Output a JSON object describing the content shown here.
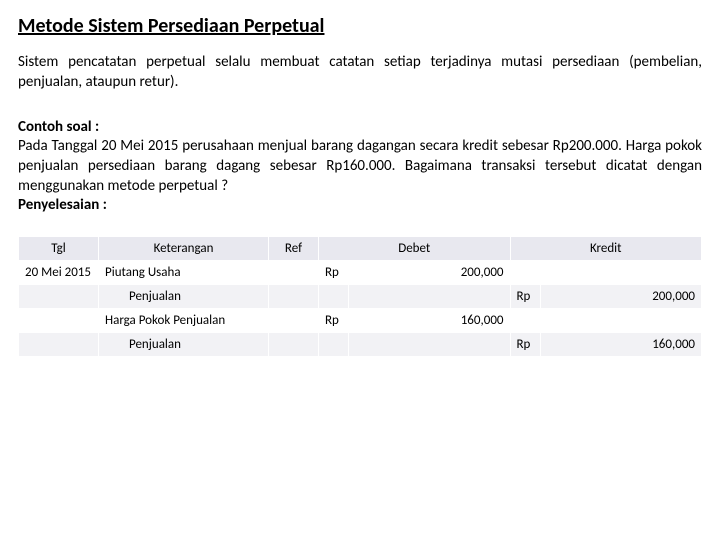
{
  "title": "Metode Sistem Persediaan Perpetual",
  "intro": "Sistem pencatatan perpetual selalu membuat catatan setiap terjadinya mutasi persediaan (pembelian, penjualan, ataupun retur).",
  "example_label": "Contoh soal :",
  "example_body": "Pada Tanggal 20 Mei 2015 perusahaan menjual barang dagangan secara kredit sebesar Rp200.000. Harga pokok penjualan persediaan barang dagang sebesar Rp160.000. Bagaimana transaksi tersebut dicatat dengan menggunakan metode perpetual ?",
  "solution_label": "Penyelesaian :",
  "table": {
    "type": "table",
    "header_bg": "#e8e8ef",
    "zebra_bg": "#f2f2f5",
    "border_color": "#ffffff",
    "font_size": 13,
    "columns": [
      "Tgl",
      "Keterangan",
      "Ref",
      "Debet",
      "Kredit"
    ],
    "rows": [
      {
        "date": "20 Mei 2015",
        "keterangan": "Piutang Usaha",
        "debet_cur": "Rp",
        "debet": "200,000",
        "kredit_cur": "",
        "kredit": "",
        "indent": false
      },
      {
        "date": "",
        "keterangan": "Penjualan",
        "debet_cur": "",
        "debet": "",
        "kredit_cur": "Rp",
        "kredit": "200,000",
        "indent": true
      },
      {
        "date": "",
        "keterangan": "Harga Pokok Penjualan",
        "debet_cur": "Rp",
        "debet": "160,000",
        "kredit_cur": "",
        "kredit": "",
        "indent": false
      },
      {
        "date": "",
        "keterangan": "Penjualan",
        "debet_cur": "",
        "debet": "",
        "kredit_cur": "Rp",
        "kredit": "160,000",
        "indent": true
      }
    ]
  }
}
